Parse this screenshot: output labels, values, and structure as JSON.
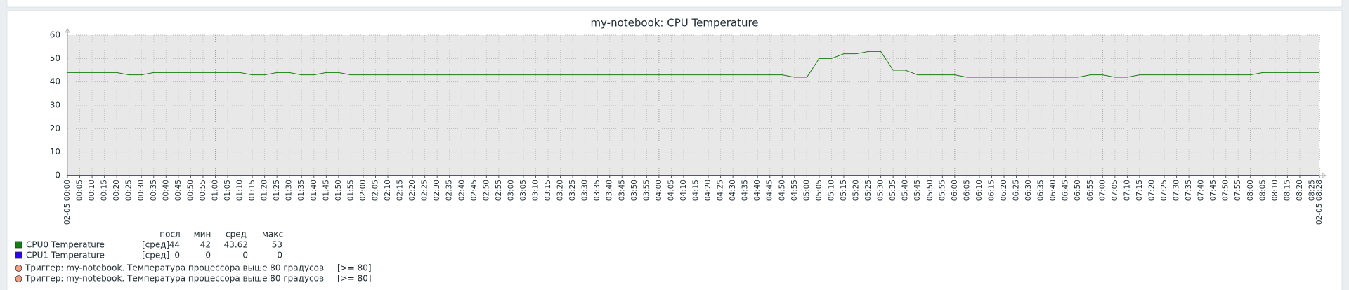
{
  "chart_data": {
    "type": "line",
    "title": "my-notebook: CPU Temperature",
    "x": [
      "02-05 00:00",
      "00:05",
      "00:10",
      "00:15",
      "00:20",
      "00:25",
      "00:30",
      "00:35",
      "00:40",
      "00:45",
      "00:50",
      "00:55",
      "01:00",
      "01:05",
      "01:10",
      "01:15",
      "01:20",
      "01:25",
      "01:30",
      "01:35",
      "01:40",
      "01:45",
      "01:50",
      "01:55",
      "02:00",
      "02:05",
      "02:10",
      "02:15",
      "02:20",
      "02:25",
      "02:30",
      "02:35",
      "02:40",
      "02:45",
      "02:50",
      "02:55",
      "03:00",
      "03:05",
      "03:10",
      "03:15",
      "03:20",
      "03:25",
      "03:30",
      "03:35",
      "03:40",
      "03:45",
      "03:50",
      "03:55",
      "04:00",
      "04:05",
      "04:10",
      "04:15",
      "04:20",
      "04:25",
      "04:30",
      "04:35",
      "04:40",
      "04:45",
      "04:50",
      "04:55",
      "05:00",
      "05:05",
      "05:10",
      "05:15",
      "05:20",
      "05:25",
      "05:30",
      "05:35",
      "05:40",
      "05:45",
      "05:50",
      "05:55",
      "06:00",
      "06:05",
      "06:10",
      "06:15",
      "06:20",
      "06:25",
      "06:30",
      "06:35",
      "06:40",
      "06:45",
      "06:50",
      "06:55",
      "07:00",
      "07:05",
      "07:10",
      "07:15",
      "07:20",
      "07:25",
      "07:30",
      "07:35",
      "07:40",
      "07:45",
      "07:50",
      "07:55",
      "08:00",
      "08:05",
      "08:10",
      "08:15",
      "08:20",
      "08:25",
      "02-05 08:28"
    ],
    "series": [
      {
        "name": "CPU0 Temperature",
        "color": "#1a7c11",
        "function": "[сред]",
        "stats": [
          44,
          42,
          43.62,
          53
        ],
        "values": [
          44,
          44,
          44,
          44,
          44,
          43,
          43,
          44,
          44,
          44,
          44,
          44,
          44,
          44,
          44,
          43,
          43,
          44,
          44,
          43,
          43,
          44,
          44,
          43,
          43,
          43,
          43,
          43,
          43,
          43,
          43,
          43,
          43,
          43,
          43,
          43,
          43,
          43,
          43,
          43,
          43,
          43,
          43,
          43,
          43,
          43,
          43,
          43,
          43,
          43,
          43,
          43,
          43,
          43,
          43,
          43,
          43,
          43,
          43,
          42,
          42,
          50,
          50,
          52,
          52,
          53,
          53,
          45,
          45,
          43,
          43,
          43,
          43,
          42,
          42,
          42,
          42,
          42,
          42,
          42,
          42,
          42,
          42,
          43,
          43,
          42,
          42,
          43,
          43,
          43,
          43,
          43,
          43,
          43,
          43,
          43,
          43,
          44,
          44,
          44,
          44,
          44,
          44
        ]
      },
      {
        "name": "CPU1 Temperature",
        "color": "#2a00ff",
        "function": "[сред]",
        "stats": [
          0,
          0,
          0,
          0
        ],
        "values": [
          0,
          0,
          0,
          0,
          0,
          0,
          0,
          0,
          0,
          0,
          0,
          0,
          0,
          0,
          0,
          0,
          0,
          0,
          0,
          0,
          0,
          0,
          0,
          0,
          0,
          0,
          0,
          0,
          0,
          0,
          0,
          0,
          0,
          0,
          0,
          0,
          0,
          0,
          0,
          0,
          0,
          0,
          0,
          0,
          0,
          0,
          0,
          0,
          0,
          0,
          0,
          0,
          0,
          0,
          0,
          0,
          0,
          0,
          0,
          0,
          0,
          0,
          0,
          0,
          0,
          0,
          0,
          0,
          0,
          0,
          0,
          0,
          0,
          0,
          0,
          0,
          0,
          0,
          0,
          0,
          0,
          0,
          0,
          0,
          0,
          0,
          0,
          0,
          0,
          0,
          0,
          0,
          0,
          0,
          0,
          0,
          0,
          0,
          0,
          0,
          0,
          0,
          0
        ]
      }
    ],
    "legend_columns": [
      "посл",
      "мин",
      "сред",
      "макс"
    ],
    "triggers": [
      {
        "name": "Триггер: my-notebook. Температура процессора выше 80 градусов",
        "condition": "[>= 80]",
        "color": "#f0a080"
      },
      {
        "name": "Триггер: my-notebook. Температура процессора выше 80 градусов",
        "condition": "[>= 80]",
        "color": "#f0a080"
      }
    ],
    "ylim": [
      0,
      60
    ],
    "yticks": [
      0,
      10,
      20,
      30,
      40,
      50,
      60
    ],
    "grid": true,
    "major_tick_color": "#dd0000"
  }
}
